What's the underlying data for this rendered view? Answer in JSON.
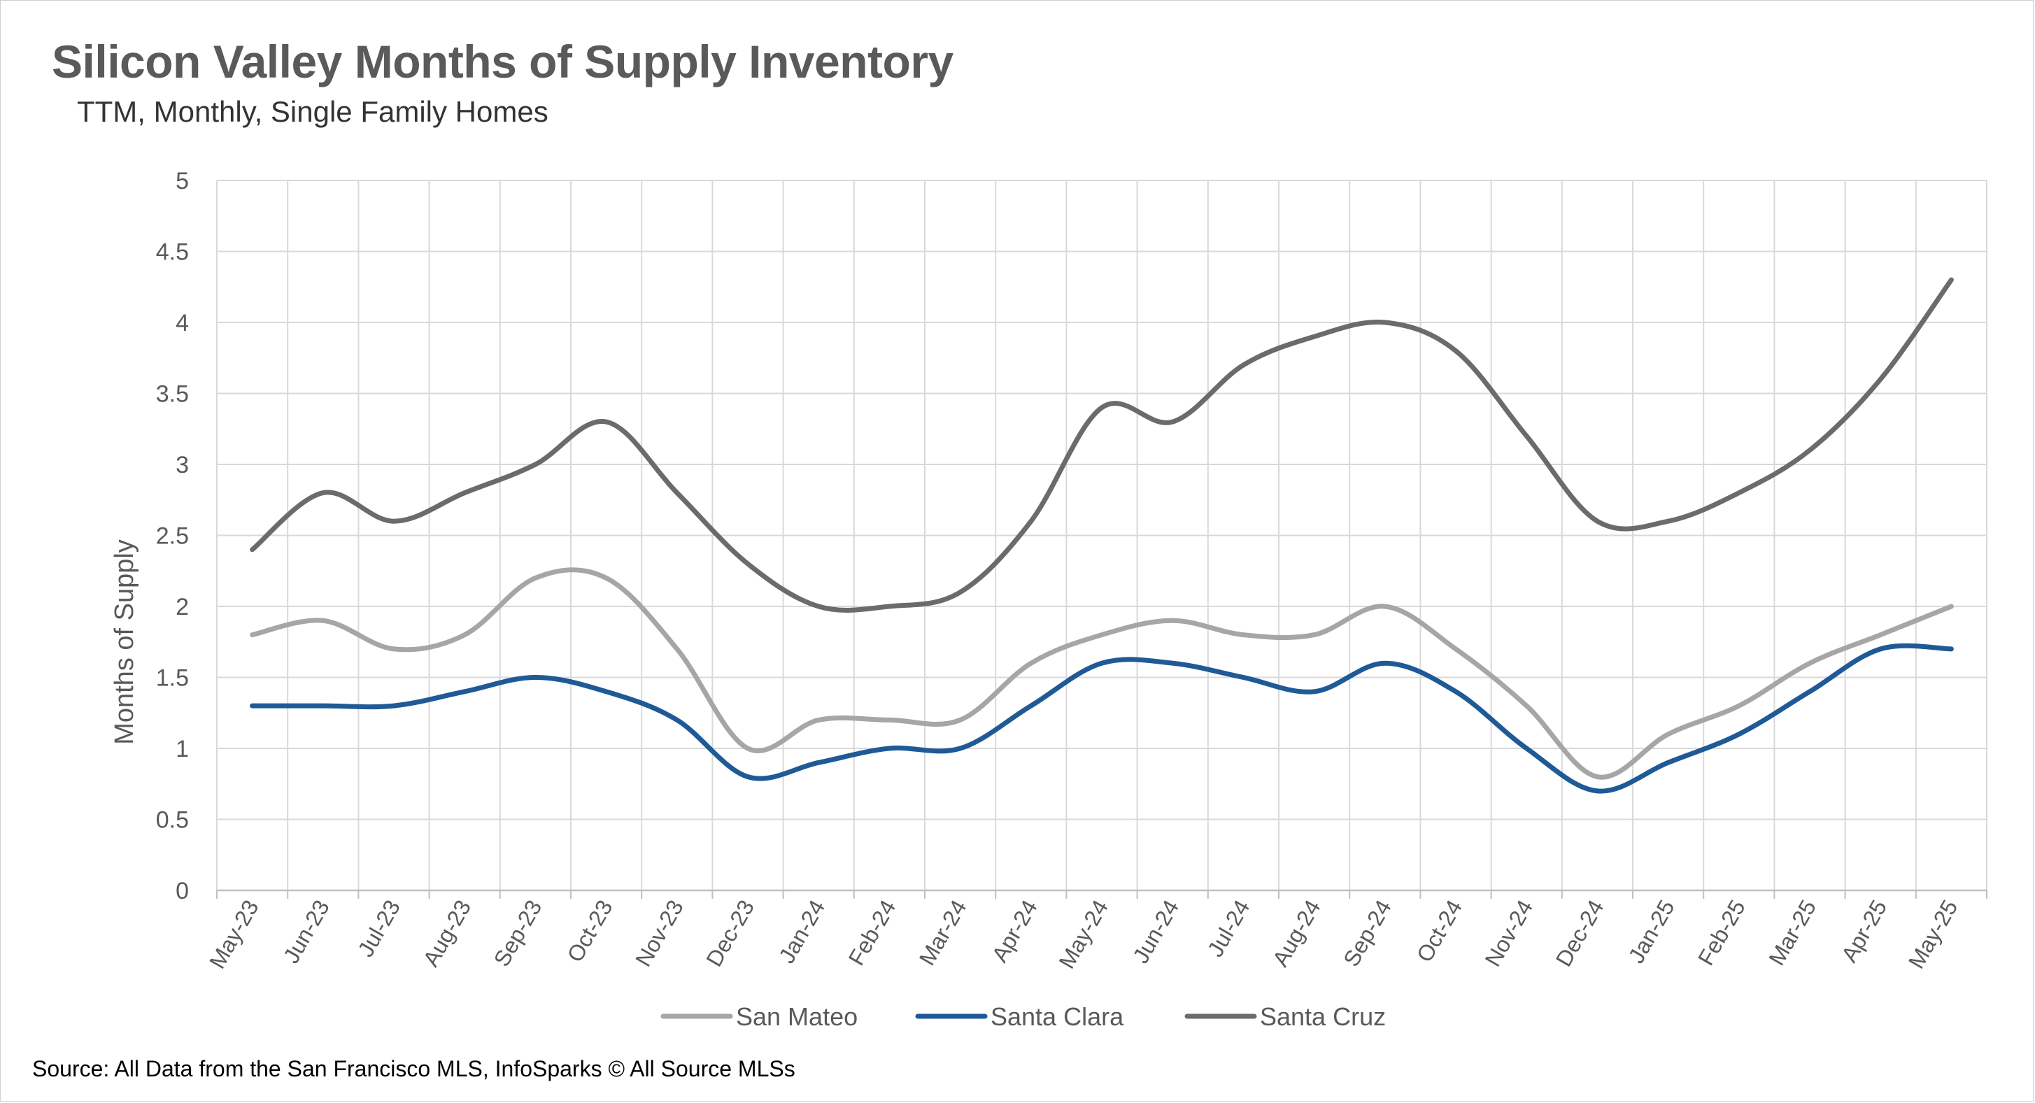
{
  "chart_data": {
    "type": "line",
    "title": "Silicon Valley Months of Supply Inventory",
    "subtitle": "TTM, Monthly, Single Family Homes",
    "xlabel": "",
    "ylabel": "Months of Supply",
    "ylim": [
      0,
      5
    ],
    "yticks": [
      "0",
      "0.5",
      "1",
      "1.5",
      "2",
      "2.5",
      "3",
      "3.5",
      "4",
      "4.5",
      "5"
    ],
    "grid": true,
    "legend_position": "bottom",
    "categories": [
      "May-23",
      "Jun-23",
      "Jul-23",
      "Aug-23",
      "Sep-23",
      "Oct-23",
      "Nov-23",
      "Dec-23",
      "Jan-24",
      "Feb-24",
      "Mar-24",
      "Apr-24",
      "May-24",
      "Jun-24",
      "Jul-24",
      "Aug-24",
      "Sep-24",
      "Oct-24",
      "Nov-24",
      "Dec-24",
      "Jan-25",
      "Feb-25",
      "Mar-25",
      "Apr-25",
      "May-25"
    ],
    "series": [
      {
        "name": "San Mateo",
        "color": "#a6a6a6",
        "values": [
          1.8,
          1.9,
          1.7,
          1.8,
          2.2,
          2.2,
          1.7,
          1.0,
          1.2,
          1.2,
          1.2,
          1.6,
          1.8,
          1.9,
          1.8,
          1.8,
          2.0,
          1.7,
          1.3,
          0.8,
          1.1,
          1.3,
          1.6,
          1.8,
          2.0
        ]
      },
      {
        "name": "Santa Clara",
        "color": "#1f5a96",
        "values": [
          1.3,
          1.3,
          1.3,
          1.4,
          1.5,
          1.4,
          1.2,
          0.8,
          0.9,
          1.0,
          1.0,
          1.3,
          1.6,
          1.6,
          1.5,
          1.4,
          1.6,
          1.4,
          1.0,
          0.7,
          0.9,
          1.1,
          1.4,
          1.7,
          1.7
        ]
      },
      {
        "name": "Santa Cruz",
        "color": "#6b6b6b",
        "values": [
          2.4,
          2.8,
          2.6,
          2.8,
          3.0,
          3.3,
          2.8,
          2.3,
          2.0,
          2.0,
          2.1,
          2.6,
          3.4,
          3.3,
          3.7,
          3.9,
          4.0,
          3.8,
          3.2,
          2.6,
          2.6,
          2.8,
          3.1,
          3.6,
          4.3
        ]
      }
    ],
    "source": "Source: All Data from the San Francisco MLS, InfoSparks © All Source MLSs"
  }
}
